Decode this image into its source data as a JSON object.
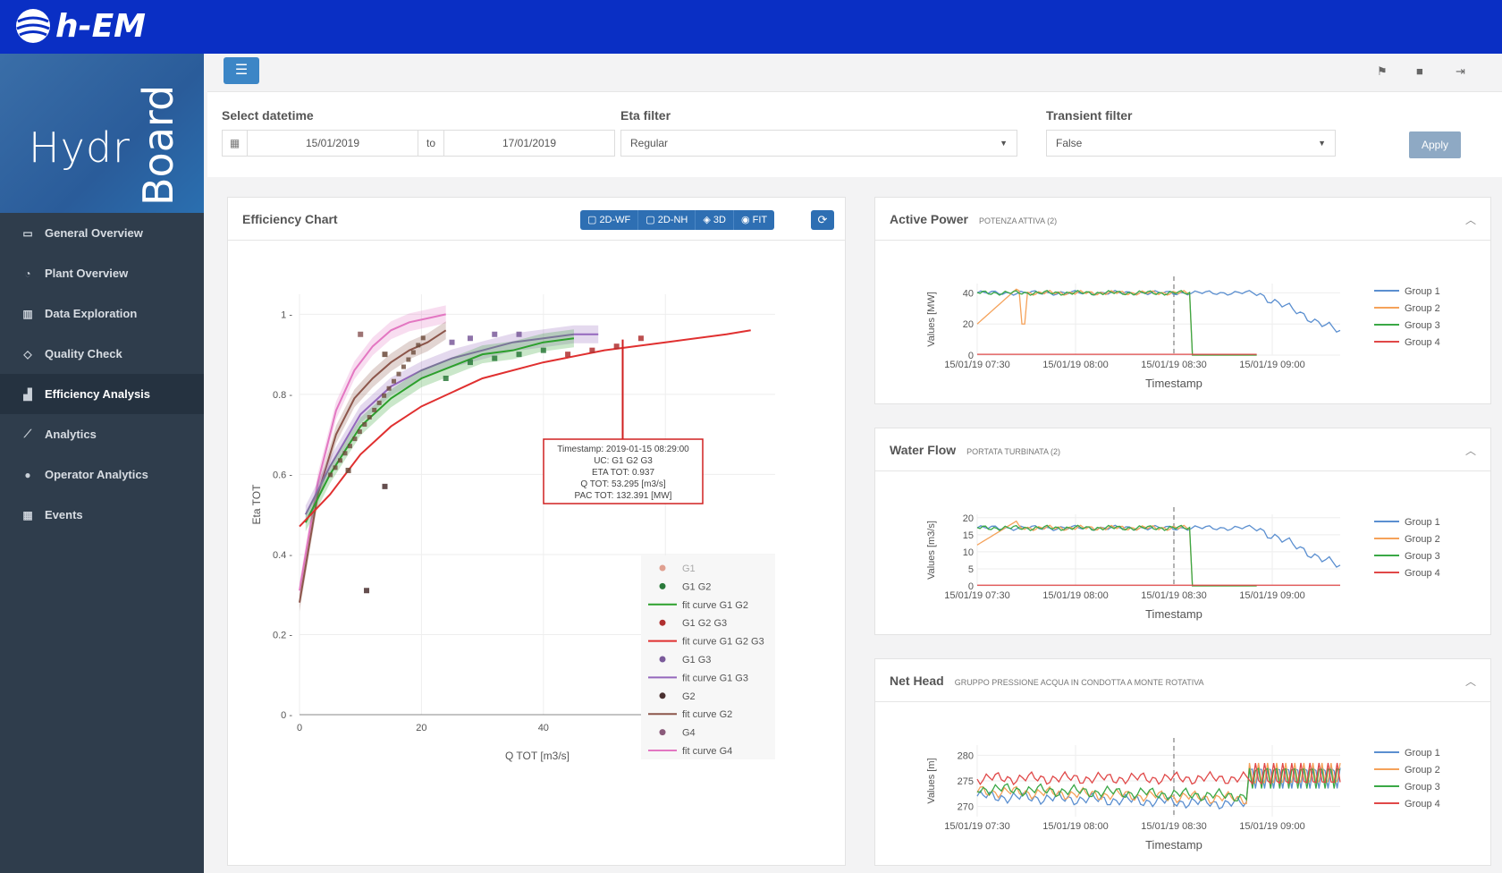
{
  "brand": {
    "logo_text": "h-EM",
    "app_name_h": "Hydr",
    "app_name_v": "Board"
  },
  "sidebar": {
    "items": [
      {
        "label": "General Overview",
        "icon": "map-icon"
      },
      {
        "label": "Plant Overview",
        "icon": "gauge-icon"
      },
      {
        "label": "Data Exploration",
        "icon": "bar-chart-icon"
      },
      {
        "label": "Quality Check",
        "icon": "diamond-icon"
      },
      {
        "label": "Efficiency Analysis",
        "icon": "signal-icon",
        "active": true
      },
      {
        "label": "Analytics",
        "icon": "line-chart-icon"
      },
      {
        "label": "Operator Analytics",
        "icon": "user-icon"
      },
      {
        "label": "Events",
        "icon": "calendar-icon"
      }
    ]
  },
  "toolbar": {
    "menu_icon": "☰"
  },
  "filters": {
    "datetime_label": "Select datetime",
    "from": "15/01/2019",
    "to_label": "to",
    "to": "17/01/2019",
    "eta_label": "Eta filter",
    "eta_value": "Regular",
    "transient_label": "Transient filter",
    "transient_value": "False",
    "apply": "Apply"
  },
  "efficiency": {
    "title": "Efficiency Chart",
    "buttons": [
      "2D-WF",
      "2D-NH",
      "3D",
      "FIT"
    ],
    "tooltip": [
      "Timestamp: 2019-01-15 08:29:00",
      "UC: G1 G2 G3",
      "ETA TOT: 0.937",
      "Q TOT: 53.295 [m3/s]",
      "PAC TOT: 132.391 [MW]"
    ],
    "legend": [
      "G1",
      "G1 G2",
      "fit curve G1 G2",
      "G1 G2 G3",
      "fit curve G1 G2 G3",
      "G1 G3",
      "fit curve G1 G3",
      "G2",
      "fit curve G2",
      "G4",
      "fit curve G4"
    ]
  },
  "active_power": {
    "title": "Active Power",
    "sub": "POTENZA ATTIVA (2)"
  },
  "water_flow": {
    "title": "Water Flow",
    "sub": "PORTATA TURBINATA (2)"
  },
  "net_head": {
    "title": "Net Head",
    "sub": "GRUPPO PRESSIONE ACQUA IN CONDOTTA A MONTE ROTATIVA"
  },
  "chart_data": [
    {
      "type": "scatter",
      "title": "Efficiency Chart",
      "xlabel": "Q TOT [m3/s]",
      "ylabel": "Eta TOT",
      "xlim": [
        0,
        78
      ],
      "ylim": [
        0,
        1.05
      ],
      "xticks": [
        "0",
        "20",
        "40",
        "60"
      ],
      "yticks": [
        "0",
        "0.2",
        "0.4",
        "0.6",
        "0.8",
        "1"
      ],
      "series": [
        {
          "name": "fit curve G1 G2 G3",
          "color": "#e03030",
          "x": [
            0,
            5,
            10,
            15,
            20,
            30,
            40,
            50,
            60,
            70,
            74
          ],
          "values": [
            0.47,
            0.55,
            0.65,
            0.72,
            0.77,
            0.84,
            0.88,
            0.91,
            0.93,
            0.95,
            0.96
          ]
        },
        {
          "name": "fit curve G1 G2",
          "color": "#2ca02c",
          "x": [
            1,
            5,
            10,
            15,
            20,
            25,
            30,
            35,
            40,
            45
          ],
          "values": [
            0.48,
            0.6,
            0.72,
            0.79,
            0.84,
            0.87,
            0.9,
            0.91,
            0.93,
            0.94
          ]
        },
        {
          "name": "fit curve G1 G3",
          "color": "#9467bd",
          "x": [
            1,
            5,
            10,
            15,
            20,
            25,
            30,
            35,
            40,
            45,
            49
          ],
          "values": [
            0.5,
            0.62,
            0.75,
            0.82,
            0.86,
            0.89,
            0.91,
            0.93,
            0.94,
            0.95,
            0.95
          ]
        },
        {
          "name": "fit curve G2",
          "color": "#8c564b",
          "x": [
            0,
            3,
            6,
            9,
            12,
            15,
            18,
            21,
            24
          ],
          "values": [
            0.28,
            0.55,
            0.7,
            0.79,
            0.84,
            0.88,
            0.91,
            0.93,
            0.96
          ]
        },
        {
          "name": "fit curve G4",
          "color": "#e377c2",
          "x": [
            0,
            3,
            6,
            9,
            12,
            15,
            18,
            21,
            24
          ],
          "values": [
            0.31,
            0.58,
            0.76,
            0.86,
            0.92,
            0.96,
            0.98,
            0.99,
            1.0
          ]
        }
      ]
    },
    {
      "type": "line",
      "title": "Active Power",
      "xlabel": "Timestamp",
      "ylabel": "Values [MW]",
      "yticks": [
        "0",
        "20",
        "40"
      ],
      "xticks": [
        "15/01/19 07:30",
        "15/01/19 08:00",
        "15/01/19 08:30",
        "15/01/19 09:00"
      ],
      "legend": [
        "Group 1",
        "Group 2",
        "Group 3",
        "Group 4"
      ]
    },
    {
      "type": "line",
      "title": "Water Flow",
      "xlabel": "Timestamp",
      "ylabel": "Values [m3/s]",
      "yticks": [
        "0",
        "5",
        "10",
        "15",
        "20"
      ],
      "xticks": [
        "15/01/19 07:30",
        "15/01/19 08:00",
        "15/01/19 08:30",
        "15/01/19 09:00"
      ],
      "legend": [
        "Group 1",
        "Group 2",
        "Group 3",
        "Group 4"
      ]
    },
    {
      "type": "line",
      "title": "Net Head",
      "xlabel": "Timestamp",
      "ylabel": "Values [m]",
      "yticks": [
        "270",
        "275",
        "280"
      ],
      "xticks": [
        "15/01/19 07:30",
        "15/01/19 08:00",
        "15/01/19 08:30",
        "15/01/19 09:00"
      ],
      "legend": [
        "Group 1",
        "Group 2",
        "Group 3",
        "Group 4"
      ]
    }
  ]
}
